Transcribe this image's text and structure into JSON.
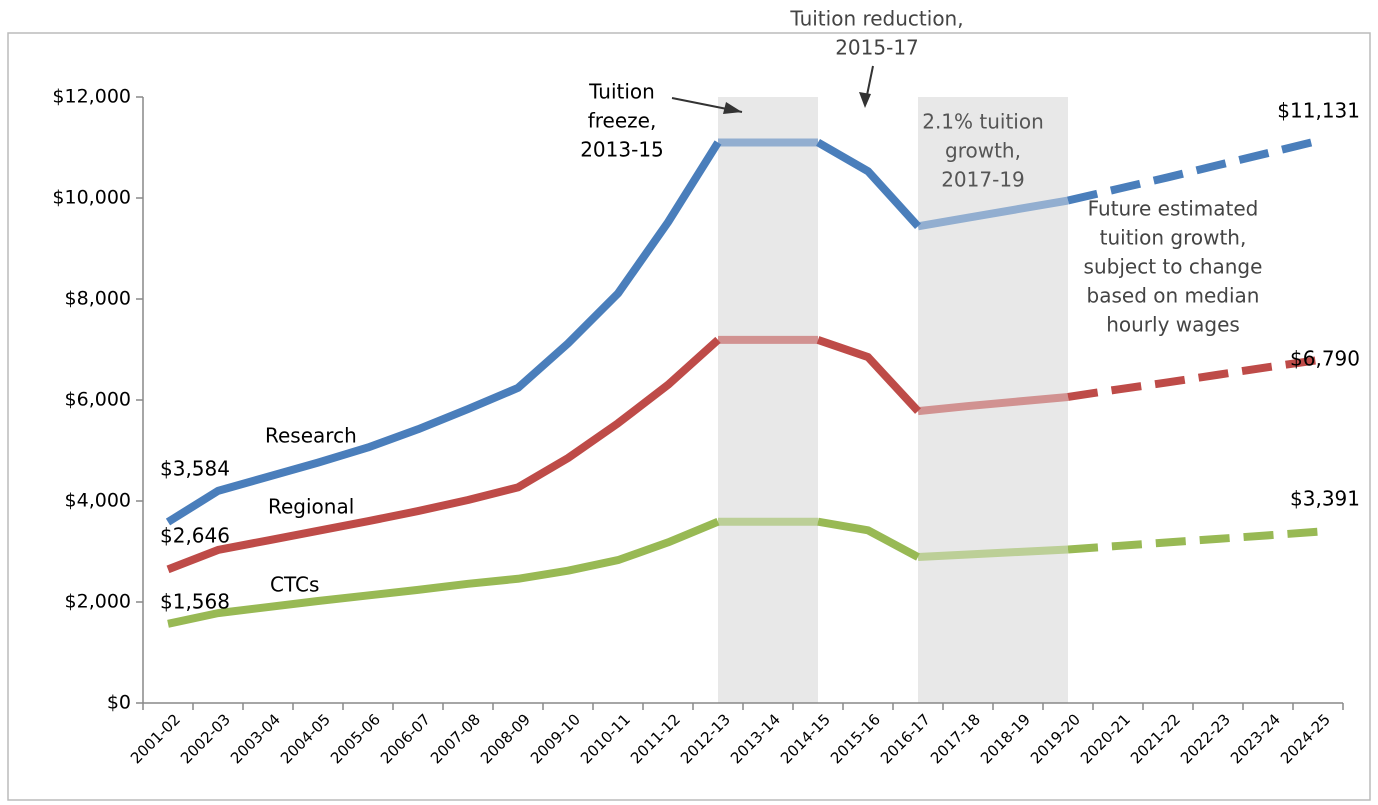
{
  "chart_data": {
    "type": "line",
    "categories": [
      "2001-02",
      "2002-03",
      "2003-04",
      "2004-05",
      "2005-06",
      "2006-07",
      "2007-08",
      "2008-09",
      "2009-10",
      "2010-11",
      "2011-12",
      "2012-13",
      "2013-14",
      "2014-15",
      "2015-16",
      "2016-17",
      "2017-18",
      "2018-19",
      "2019-20",
      "2020-21",
      "2021-22",
      "2022-23",
      "2023-24",
      "2024-25"
    ],
    "series": [
      {
        "name": "Research",
        "color": "#4a7ebb",
        "values": [
          3584,
          4200,
          4480,
          4760,
          5060,
          5420,
          5820,
          6240,
          7120,
          8110,
          9520,
          11100,
          11100,
          11100,
          10530,
          9440,
          9610,
          9780,
          9950,
          10180,
          10410,
          10650,
          10890,
          11131
        ],
        "value_labels": [
          "$3,584",
          null,
          null,
          null,
          null,
          null,
          null,
          null,
          null,
          null,
          null,
          null,
          null,
          null,
          null,
          null,
          null,
          null,
          null,
          null,
          null,
          null,
          null,
          "$11,131"
        ]
      },
      {
        "name": "Regional",
        "color": "#be4b48",
        "values": [
          2646,
          3030,
          3220,
          3410,
          3600,
          3800,
          4020,
          4270,
          4850,
          5540,
          6300,
          7190,
          7190,
          7190,
          6850,
          5780,
          5880,
          5970,
          6060,
          6210,
          6350,
          6500,
          6650,
          6790
        ],
        "value_labels": [
          "$2,646",
          null,
          null,
          null,
          null,
          null,
          null,
          null,
          null,
          null,
          null,
          null,
          null,
          null,
          null,
          null,
          null,
          null,
          null,
          null,
          null,
          null,
          null,
          "$6,790"
        ]
      },
      {
        "name": "CTCs",
        "color": "#98b954",
        "values": [
          1568,
          1780,
          1900,
          2020,
          2130,
          2240,
          2360,
          2460,
          2620,
          2830,
          3180,
          3590,
          3590,
          3590,
          3420,
          2890,
          2940,
          2990,
          3040,
          3110,
          3180,
          3250,
          3320,
          3391
        ],
        "value_labels": [
          "$1,568",
          null,
          null,
          null,
          null,
          null,
          null,
          null,
          null,
          null,
          null,
          null,
          null,
          null,
          null,
          null,
          null,
          null,
          null,
          null,
          null,
          null,
          null,
          "$3,391"
        ]
      }
    ],
    "ylim": [
      0,
      12000
    ],
    "yticks": [
      {
        "value": 0,
        "label": "$0"
      },
      {
        "value": 2000,
        "label": "$2,000"
      },
      {
        "value": 4000,
        "label": "$4,000"
      },
      {
        "value": 6000,
        "label": "$6,000"
      },
      {
        "value": 8000,
        "label": "$8,000"
      },
      {
        "value": 10000,
        "label": "$10,000"
      },
      {
        "value": 12000,
        "label": "$12,000"
      }
    ],
    "shaded_ranges": [
      [
        "2012-13",
        "2014-15"
      ],
      [
        "2016-17",
        "2019-20"
      ]
    ],
    "projection_from": "2019-20",
    "annotations": [
      {
        "lines": [
          "Tuition reduction,",
          "2015-17"
        ]
      },
      {
        "lines": [
          "Tuition",
          "freeze,",
          "2013-15"
        ]
      },
      {
        "lines": [
          "2.1% tuition",
          "growth,",
          "2017-19"
        ]
      },
      {
        "lines": [
          "Future estimated",
          "tuition growth,",
          "subject to change",
          "based on median",
          "hourly wages"
        ]
      }
    ]
  }
}
